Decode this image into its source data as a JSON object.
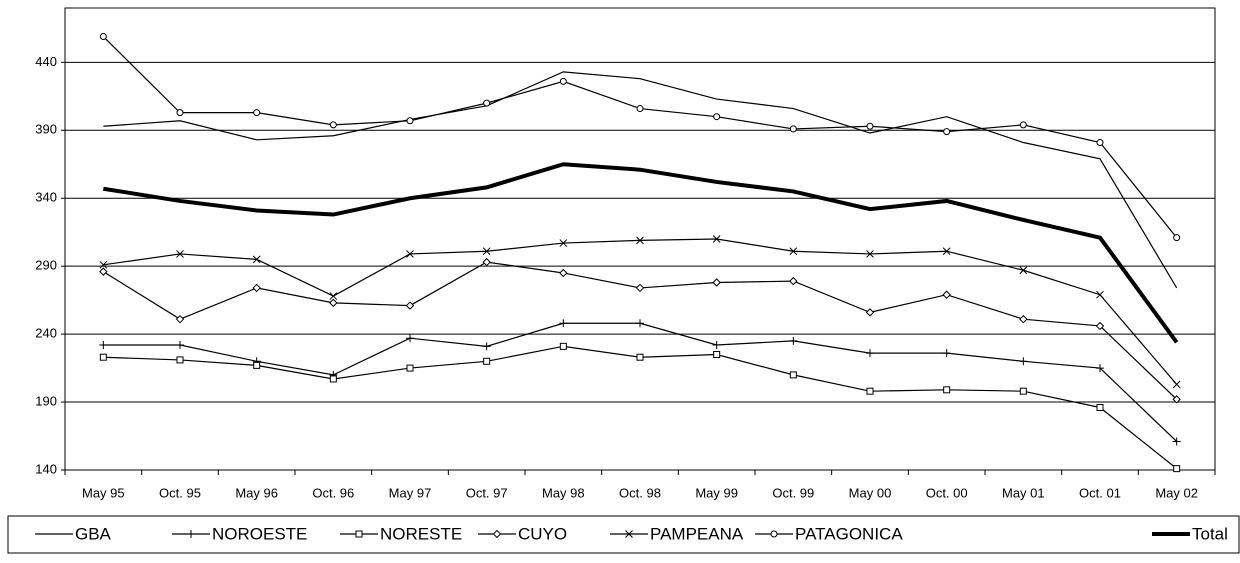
{
  "chart_data": {
    "type": "line",
    "categories": [
      "May 95",
      "Oct. 95",
      "May 96",
      "Oct. 96",
      "May 97",
      "Oct. 97",
      "May 98",
      "Oct. 98",
      "May 99",
      "Oct. 99",
      "May 00",
      "Oct. 00",
      "May 01",
      "Oct. 01",
      "May 02"
    ],
    "ylim": [
      140,
      480
    ],
    "yticks": [
      140,
      190,
      240,
      290,
      340,
      390,
      440
    ],
    "grid": true,
    "series": [
      {
        "name": "GBA",
        "color": "#000000",
        "marker": "none",
        "values": [
          393,
          397,
          383,
          386,
          398,
          408,
          433,
          428,
          413,
          406,
          388,
          400,
          381,
          369,
          274
        ]
      },
      {
        "name": "NOROESTE",
        "color": "#000000",
        "marker": "plus",
        "values": [
          232,
          232,
          220,
          210,
          237,
          231,
          248,
          248,
          232,
          235,
          226,
          226,
          220,
          215,
          161
        ]
      },
      {
        "name": "NORESTE",
        "color": "#000000",
        "marker": "square",
        "values": [
          223,
          221,
          217,
          207,
          215,
          220,
          231,
          223,
          225,
          210,
          198,
          199,
          198,
          186,
          141
        ]
      },
      {
        "name": "CUYO",
        "color": "#000000",
        "marker": "diamond",
        "values": [
          286,
          251,
          274,
          263,
          261,
          293,
          285,
          274,
          278,
          279,
          256,
          269,
          251,
          246,
          192
        ]
      },
      {
        "name": "PAMPEANA",
        "color": "#000000",
        "marker": "x",
        "values": [
          291,
          299,
          295,
          268,
          299,
          301,
          307,
          309,
          310,
          301,
          299,
          301,
          287,
          269,
          203
        ]
      },
      {
        "name": "PATAGONICA",
        "color": "#000000",
        "marker": "circle",
        "values": [
          459,
          403,
          403,
          394,
          397,
          410,
          426,
          406,
          400,
          391,
          393,
          389,
          394,
          381,
          311
        ]
      },
      {
        "name": "Total",
        "color": "#000000",
        "marker": "none",
        "bold": true,
        "values": [
          347,
          338,
          331,
          328,
          340,
          348,
          365,
          361,
          352,
          345,
          332,
          338,
          324,
          311,
          234
        ]
      }
    ]
  }
}
